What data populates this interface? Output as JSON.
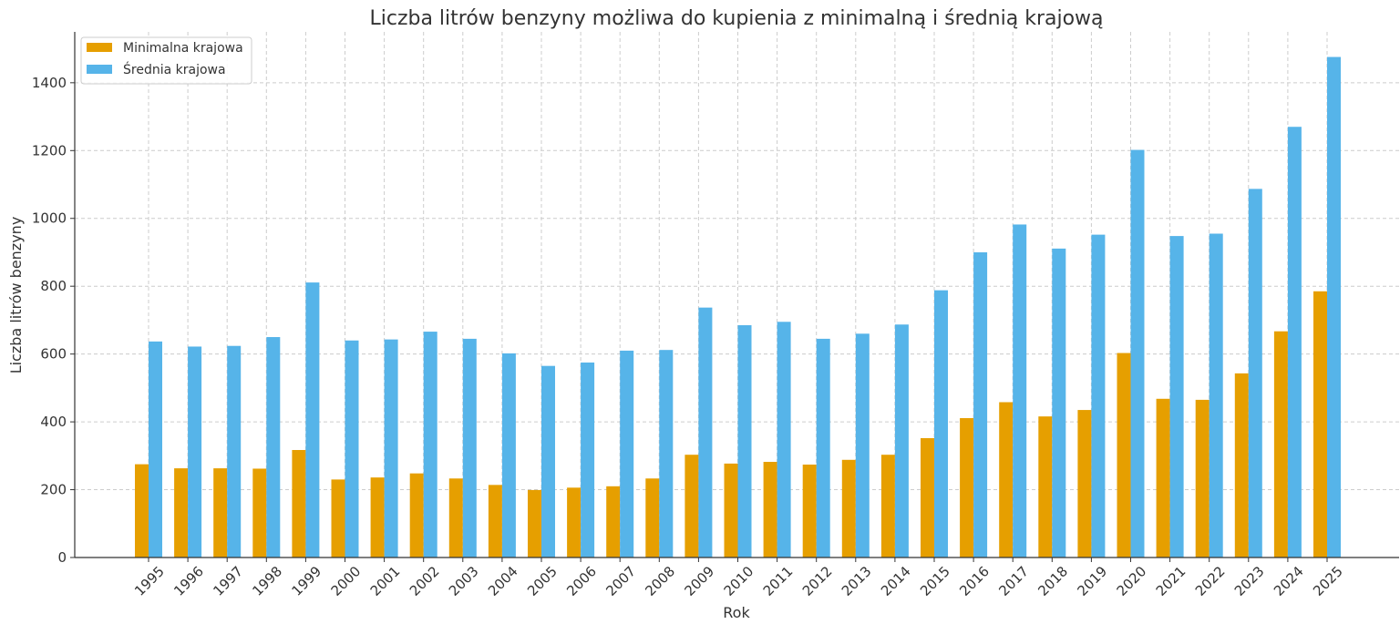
{
  "chart_data": {
    "type": "bar",
    "title": "Liczba litrów benzyny możliwa do kupienia z minimalną i średnią krajową",
    "xlabel": "Rok",
    "ylabel": "Liczba litrów benzyny",
    "ylim": [
      0,
      1550
    ],
    "yticks": [
      0,
      200,
      400,
      600,
      800,
      1000,
      1200,
      1400
    ],
    "grid": true,
    "legend_position": "top-left",
    "categories": [
      "1995",
      "1996",
      "1997",
      "1998",
      "1999",
      "2000",
      "2001",
      "2002",
      "2003",
      "2004",
      "2005",
      "2006",
      "2007",
      "2008",
      "2009",
      "2010",
      "2011",
      "2012",
      "2013",
      "2014",
      "2015",
      "2016",
      "2017",
      "2018",
      "2019",
      "2020",
      "2021",
      "2022",
      "2023",
      "2024",
      "2025"
    ],
    "series": [
      {
        "name": "Minimalna krajowa",
        "color": "#E69F00",
        "values": [
          275,
          263,
          263,
          262,
          317,
          230,
          236,
          248,
          233,
          214,
          199,
          206,
          210,
          233,
          303,
          277,
          282,
          274,
          288,
          303,
          352,
          411,
          458,
          416,
          435,
          603,
          468,
          465,
          543,
          667,
          785
        ]
      },
      {
        "name": "Średnia krajowa",
        "color": "#56B4E9",
        "values": [
          637,
          622,
          624,
          650,
          811,
          640,
          643,
          666,
          645,
          602,
          565,
          575,
          610,
          612,
          737,
          685,
          695,
          645,
          660,
          687,
          788,
          900,
          982,
          911,
          952,
          1202,
          948,
          955,
          1087,
          1270,
          1476
        ]
      }
    ]
  }
}
